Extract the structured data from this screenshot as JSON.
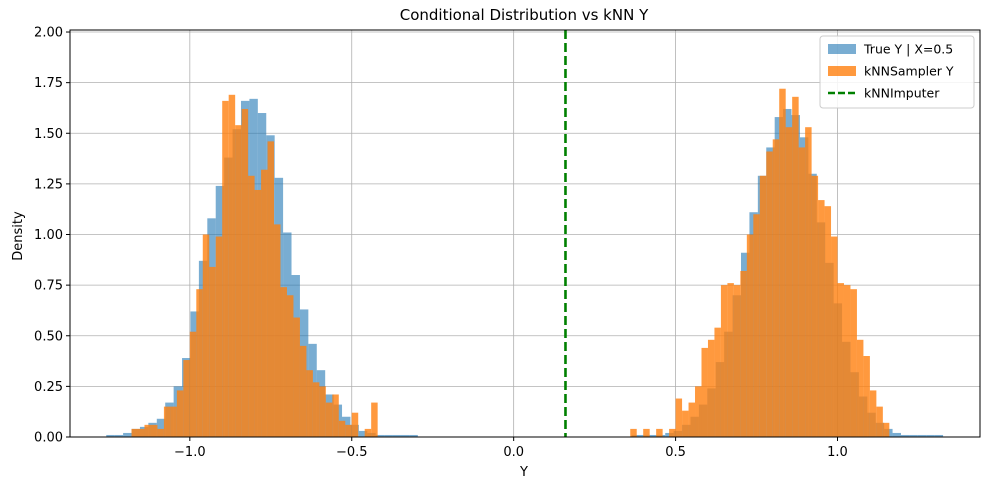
{
  "chart_data": {
    "type": "histogram",
    "title": "Conditional Distribution vs kNN Y",
    "xlabel": "Y",
    "ylabel": "Density",
    "xlim": [
      -1.37,
      1.44
    ],
    "ylim": [
      0,
      2.01
    ],
    "grid": true,
    "legend_location": "top-right",
    "x_ticks": [
      -1.0,
      -0.5,
      0.0,
      0.5,
      1.0
    ],
    "x_tick_labels": [
      "−1.0",
      "−0.5",
      "0.0",
      "0.5",
      "1.0"
    ],
    "y_ticks": [
      0.0,
      0.25,
      0.5,
      0.75,
      1.0,
      1.25,
      1.5,
      1.75,
      2.0
    ],
    "y_tick_labels": [
      "0.00",
      "0.25",
      "0.50",
      "0.75",
      "1.00",
      "1.25",
      "1.50",
      "1.75",
      "2.00"
    ],
    "series": [
      {
        "name": "True Y | X=0.5",
        "color": "#1f77b4",
        "opacity": 0.6,
        "bin_width": 0.026,
        "bins": [
          [
            -1.258,
            0.01
          ],
          [
            -1.232,
            0.01
          ],
          [
            -1.206,
            0.02
          ],
          [
            -1.18,
            0.04
          ],
          [
            -1.154,
            0.05
          ],
          [
            -1.128,
            0.07
          ],
          [
            -1.102,
            0.09
          ],
          [
            -1.076,
            0.17
          ],
          [
            -1.05,
            0.25
          ],
          [
            -1.024,
            0.39
          ],
          [
            -0.998,
            0.62
          ],
          [
            -0.972,
            0.87
          ],
          [
            -0.946,
            1.08
          ],
          [
            -0.92,
            1.24
          ],
          [
            -0.894,
            1.38
          ],
          [
            -0.868,
            1.52
          ],
          [
            -0.842,
            1.66
          ],
          [
            -0.816,
            1.67
          ],
          [
            -0.79,
            1.6
          ],
          [
            -0.764,
            1.49
          ],
          [
            -0.738,
            1.28
          ],
          [
            -0.712,
            1.01
          ],
          [
            -0.686,
            0.8
          ],
          [
            -0.66,
            0.63
          ],
          [
            -0.634,
            0.46
          ],
          [
            -0.608,
            0.33
          ],
          [
            -0.582,
            0.21
          ],
          [
            -0.556,
            0.16
          ],
          [
            -0.53,
            0.1
          ],
          [
            -0.504,
            0.06
          ],
          [
            -0.478,
            0.03
          ],
          [
            -0.452,
            0.02
          ],
          [
            -0.426,
            0.01
          ],
          [
            -0.4,
            0.01
          ],
          [
            -0.374,
            0.01
          ],
          [
            -0.348,
            0.01
          ],
          [
            -0.322,
            0.01
          ],
          [
            0.364,
            0.01
          ],
          [
            0.39,
            0.01
          ],
          [
            0.416,
            0.01
          ],
          [
            0.442,
            0.01
          ],
          [
            0.468,
            0.02
          ],
          [
            0.494,
            0.03
          ],
          [
            0.52,
            0.06
          ],
          [
            0.546,
            0.1
          ],
          [
            0.572,
            0.16
          ],
          [
            0.598,
            0.24
          ],
          [
            0.624,
            0.37
          ],
          [
            0.65,
            0.52
          ],
          [
            0.676,
            0.7
          ],
          [
            0.702,
            0.91
          ],
          [
            0.728,
            1.11
          ],
          [
            0.754,
            1.29
          ],
          [
            0.78,
            1.43
          ],
          [
            0.806,
            1.58
          ],
          [
            0.832,
            1.62
          ],
          [
            0.858,
            1.59
          ],
          [
            0.884,
            1.48
          ],
          [
            0.91,
            1.3
          ],
          [
            0.936,
            1.06
          ],
          [
            0.962,
            0.86
          ],
          [
            0.988,
            0.66
          ],
          [
            1.014,
            0.47
          ],
          [
            1.04,
            0.32
          ],
          [
            1.066,
            0.2
          ],
          [
            1.092,
            0.12
          ],
          [
            1.118,
            0.07
          ],
          [
            1.144,
            0.04
          ],
          [
            1.17,
            0.02
          ],
          [
            1.196,
            0.01
          ],
          [
            1.222,
            0.01
          ],
          [
            1.248,
            0.01
          ],
          [
            1.274,
            0.01
          ],
          [
            1.3,
            0.01
          ]
        ]
      },
      {
        "name": "kNNSampler Y",
        "color": "#ff7f0e",
        "opacity": 0.8,
        "bin_width": 0.02,
        "bins": [
          [
            -1.18,
            0.04
          ],
          [
            -1.16,
            0.04
          ],
          [
            -1.14,
            0.06
          ],
          [
            -1.12,
            0.06
          ],
          [
            -1.1,
            0.04
          ],
          [
            -1.08,
            0.15
          ],
          [
            -1.06,
            0.15
          ],
          [
            -1.04,
            0.23
          ],
          [
            -1.02,
            0.38
          ],
          [
            -1.0,
            0.52
          ],
          [
            -0.98,
            0.73
          ],
          [
            -0.96,
            1.0
          ],
          [
            -0.94,
            0.84
          ],
          [
            -0.92,
            0.99
          ],
          [
            -0.9,
            1.66
          ],
          [
            -0.88,
            1.69
          ],
          [
            -0.86,
            1.54
          ],
          [
            -0.84,
            1.62
          ],
          [
            -0.82,
            1.29
          ],
          [
            -0.8,
            1.22
          ],
          [
            -0.78,
            1.32
          ],
          [
            -0.76,
            1.46
          ],
          [
            -0.74,
            1.05
          ],
          [
            -0.72,
            0.74
          ],
          [
            -0.7,
            0.7
          ],
          [
            -0.68,
            0.59
          ],
          [
            -0.66,
            0.45
          ],
          [
            -0.64,
            0.33
          ],
          [
            -0.62,
            0.27
          ],
          [
            -0.6,
            0.25
          ],
          [
            -0.58,
            0.17
          ],
          [
            -0.56,
            0.21
          ],
          [
            -0.54,
            0.08
          ],
          [
            -0.52,
            0.06
          ],
          [
            -0.5,
            0.12
          ],
          [
            -0.46,
            0.04
          ],
          [
            -0.44,
            0.17
          ],
          [
            0.36,
            0.04
          ],
          [
            0.4,
            0.04
          ],
          [
            0.44,
            0.04
          ],
          [
            0.48,
            0.04
          ],
          [
            0.5,
            0.19
          ],
          [
            0.52,
            0.13
          ],
          [
            0.54,
            0.17
          ],
          [
            0.56,
            0.25
          ],
          [
            0.58,
            0.44
          ],
          [
            0.6,
            0.48
          ],
          [
            0.62,
            0.54
          ],
          [
            0.64,
            0.75
          ],
          [
            0.66,
            0.76
          ],
          [
            0.68,
            0.75
          ],
          [
            0.7,
            0.82
          ],
          [
            0.72,
            1.0
          ],
          [
            0.74,
            1.1
          ],
          [
            0.76,
            1.29
          ],
          [
            0.78,
            1.41
          ],
          [
            0.8,
            1.47
          ],
          [
            0.82,
            1.72
          ],
          [
            0.84,
            1.53
          ],
          [
            0.86,
            1.68
          ],
          [
            0.88,
            1.43
          ],
          [
            0.9,
            1.53
          ],
          [
            0.92,
            1.29
          ],
          [
            0.94,
            1.17
          ],
          [
            0.96,
            1.14
          ],
          [
            0.98,
            0.99
          ],
          [
            1.0,
            0.76
          ],
          [
            1.02,
            0.75
          ],
          [
            1.04,
            0.73
          ],
          [
            1.06,
            0.48
          ],
          [
            1.08,
            0.4
          ],
          [
            1.1,
            0.23
          ],
          [
            1.12,
            0.15
          ],
          [
            1.14,
            0.07
          ]
        ]
      }
    ],
    "vlines": [
      {
        "name": "kNNImputer",
        "x": 0.16,
        "color": "#008000",
        "style": "dashed"
      }
    ]
  }
}
